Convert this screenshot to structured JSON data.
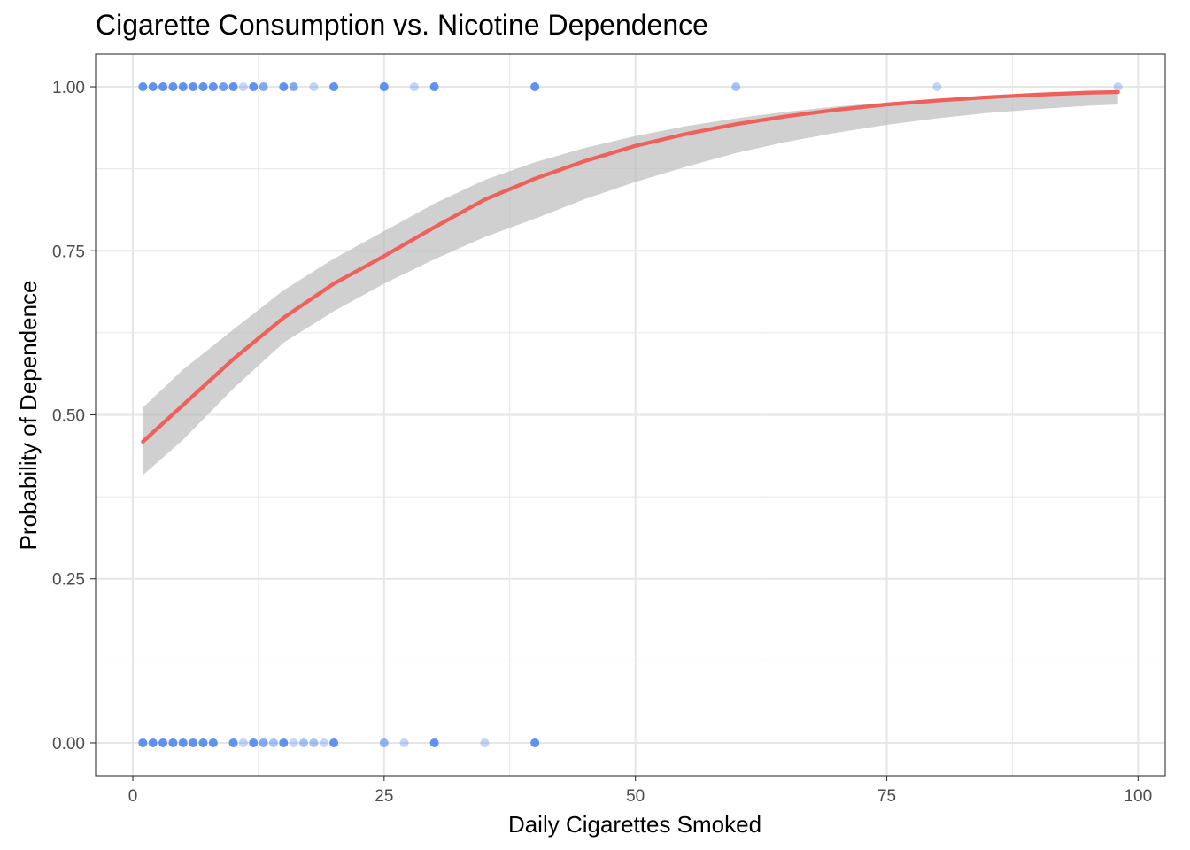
{
  "chart_data": {
    "type": "scatter",
    "title": "Cigarette Consumption vs. Nicotine Dependence",
    "xlabel": "Daily Cigarettes Smoked",
    "ylabel": "Probability of Dependence",
    "xlim": [
      -3.7,
      102.7
    ],
    "ylim": [
      -0.05,
      1.05
    ],
    "x_ticks": [
      0,
      25,
      50,
      75,
      100
    ],
    "x_tick_labels": [
      "0",
      "25",
      "50",
      "75",
      "100"
    ],
    "y_ticks": [
      0,
      0.25,
      0.5,
      0.75,
      1.0
    ],
    "y_tick_labels": [
      "0.00",
      "0.25",
      "0.50",
      "0.75",
      "1.00"
    ],
    "grid": true,
    "legend": "none",
    "colors": {
      "points": "#4f86f0",
      "fit_line": "#f0605a",
      "ribbon": "#bebebe",
      "grid": "#e6e6e6",
      "panel_border": "#333333"
    },
    "points": [
      {
        "x": 1,
        "y": 1
      },
      {
        "x": 2,
        "y": 1
      },
      {
        "x": 3,
        "y": 1
      },
      {
        "x": 4,
        "y": 1
      },
      {
        "x": 5,
        "y": 1
      },
      {
        "x": 6,
        "y": 1
      },
      {
        "x": 7,
        "y": 1
      },
      {
        "x": 8,
        "y": 1
      },
      {
        "x": 9,
        "y": 1
      },
      {
        "x": 10,
        "y": 1
      },
      {
        "x": 11,
        "y": 1
      },
      {
        "x": 12,
        "y": 1
      },
      {
        "x": 13,
        "y": 1
      },
      {
        "x": 15,
        "y": 1
      },
      {
        "x": 16,
        "y": 1
      },
      {
        "x": 18,
        "y": 1
      },
      {
        "x": 20,
        "y": 1
      },
      {
        "x": 25,
        "y": 1
      },
      {
        "x": 28,
        "y": 1
      },
      {
        "x": 30,
        "y": 1
      },
      {
        "x": 40,
        "y": 1
      },
      {
        "x": 60,
        "y": 1
      },
      {
        "x": 80,
        "y": 1
      },
      {
        "x": 98,
        "y": 1
      },
      {
        "x": 1,
        "y": 0
      },
      {
        "x": 2,
        "y": 0
      },
      {
        "x": 3,
        "y": 0
      },
      {
        "x": 4,
        "y": 0
      },
      {
        "x": 5,
        "y": 0
      },
      {
        "x": 6,
        "y": 0
      },
      {
        "x": 7,
        "y": 0
      },
      {
        "x": 8,
        "y": 0
      },
      {
        "x": 10,
        "y": 0
      },
      {
        "x": 11,
        "y": 0
      },
      {
        "x": 12,
        "y": 0
      },
      {
        "x": 13,
        "y": 0
      },
      {
        "x": 14,
        "y": 0
      },
      {
        "x": 15,
        "y": 0
      },
      {
        "x": 16,
        "y": 0
      },
      {
        "x": 17,
        "y": 0
      },
      {
        "x": 18,
        "y": 0
      },
      {
        "x": 19,
        "y": 0
      },
      {
        "x": 20,
        "y": 0
      },
      {
        "x": 25,
        "y": 0
      },
      {
        "x": 27,
        "y": 0
      },
      {
        "x": 30,
        "y": 0
      },
      {
        "x": 35,
        "y": 0
      },
      {
        "x": 40,
        "y": 0
      }
    ],
    "point_opacity": [
      0.9,
      0.9,
      0.9,
      0.9,
      0.9,
      0.9,
      0.9,
      0.9,
      0.8,
      0.9,
      0.35,
      0.9,
      0.7,
      0.9,
      0.7,
      0.35,
      0.9,
      0.9,
      0.35,
      0.9,
      0.9,
      0.5,
      0.35,
      0.35,
      0.9,
      0.9,
      0.9,
      0.9,
      0.9,
      0.9,
      0.9,
      0.9,
      0.9,
      0.35,
      0.9,
      0.7,
      0.5,
      0.9,
      0.35,
      0.5,
      0.5,
      0.35,
      0.9,
      0.6,
      0.35,
      0.9,
      0.35,
      0.9
    ],
    "fit_line": {
      "x": [
        1,
        5,
        10,
        15,
        20,
        25,
        30,
        35,
        40,
        45,
        50,
        55,
        60,
        65,
        70,
        75,
        80,
        85,
        90,
        95,
        98
      ],
      "y": [
        0.459,
        0.515,
        0.585,
        0.648,
        0.7,
        0.742,
        0.786,
        0.828,
        0.86,
        0.887,
        0.91,
        0.928,
        0.943,
        0.955,
        0.965,
        0.973,
        0.979,
        0.984,
        0.988,
        0.991,
        0.992
      ]
    },
    "confidence_band": {
      "x": [
        1,
        5,
        10,
        15,
        20,
        25,
        30,
        35,
        40,
        45,
        50,
        55,
        60,
        65,
        70,
        75,
        80,
        85,
        90,
        95,
        98
      ],
      "lower": [
        0.408,
        0.462,
        0.54,
        0.61,
        0.658,
        0.7,
        0.737,
        0.771,
        0.799,
        0.829,
        0.855,
        0.878,
        0.899,
        0.916,
        0.93,
        0.942,
        0.952,
        0.96,
        0.966,
        0.971,
        0.973
      ],
      "upper": [
        0.511,
        0.569,
        0.63,
        0.69,
        0.738,
        0.78,
        0.822,
        0.858,
        0.885,
        0.907,
        0.925,
        0.94,
        0.952,
        0.962,
        0.97,
        0.976,
        0.982,
        0.986,
        0.989,
        0.992,
        0.993
      ]
    }
  }
}
